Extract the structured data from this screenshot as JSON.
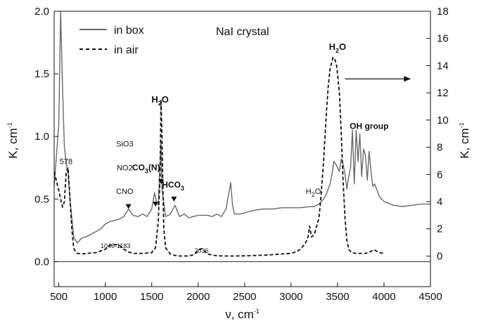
{
  "chart_data": {
    "type": "line",
    "title": "NaI crystal",
    "xlabel": "ν, cm",
    "xlabel_sup": "-1",
    "ylabel": "K, cm",
    "ylabel_sup": "-1",
    "y2label": "K, cm",
    "y2label_sup": "-1",
    "xlim": [
      450,
      4500
    ],
    "ylim": [
      -0.2,
      2.0
    ],
    "y2lim": [
      -2.25,
      18
    ],
    "xticks": [
      500,
      1000,
      1500,
      2000,
      2500,
      3000,
      3500,
      4000,
      4500
    ],
    "yticks": [
      0.0,
      0.5,
      1.0,
      1.5,
      2.0
    ],
    "y2ticks": [
      0,
      2,
      4,
      6,
      8,
      10,
      12,
      14,
      16,
      18
    ],
    "legend": [
      {
        "label": "in box",
        "style": "solid"
      },
      {
        "label": "in air",
        "style": "dashed"
      }
    ],
    "series": [
      {
        "name": "in box",
        "axis": "left",
        "color": "#6a6a6a",
        "x": [
          450,
          500,
          520,
          540,
          560,
          580,
          600,
          620,
          640,
          660,
          680,
          700,
          750,
          800,
          850,
          900,
          950,
          1000,
          1050,
          1100,
          1150,
          1200,
          1250,
          1300,
          1350,
          1400,
          1450,
          1500,
          1530,
          1550,
          1570,
          1600,
          1610,
          1650,
          1700,
          1750,
          1800,
          1850,
          1900,
          1950,
          2000,
          2050,
          2100,
          2150,
          2200,
          2250,
          2300,
          2330,
          2350,
          2370,
          2390,
          2400,
          2450,
          2500,
          2600,
          2700,
          2800,
          2900,
          3000,
          3100,
          3200,
          3250,
          3300,
          3350,
          3380,
          3400,
          3420,
          3440,
          3460,
          3480,
          3500,
          3520,
          3540,
          3560,
          3580,
          3600,
          3620,
          3640,
          3660,
          3680,
          3700,
          3720,
          3740,
          3760,
          3780,
          3800,
          3820,
          3840,
          3860,
          3880,
          3900,
          3920,
          3950,
          4000,
          4100,
          4200,
          4300,
          4400,
          4500
        ],
        "y": [
          0.6,
          1.1,
          2.0,
          1.4,
          0.92,
          0.78,
          0.7,
          0.5,
          0.35,
          0.2,
          0.17,
          0.15,
          0.19,
          0.2,
          0.22,
          0.24,
          0.26,
          0.3,
          0.32,
          0.33,
          0.34,
          0.36,
          0.42,
          0.37,
          0.36,
          0.38,
          0.36,
          0.42,
          0.55,
          0.48,
          0.45,
          0.95,
          0.58,
          0.36,
          0.38,
          0.45,
          0.36,
          0.38,
          0.35,
          0.36,
          0.37,
          0.37,
          0.37,
          0.36,
          0.38,
          0.36,
          0.42,
          0.55,
          0.63,
          0.45,
          0.38,
          0.38,
          0.38,
          0.39,
          0.41,
          0.42,
          0.42,
          0.43,
          0.43,
          0.43,
          0.44,
          0.44,
          0.46,
          0.5,
          0.54,
          0.58,
          0.62,
          0.7,
          0.8,
          0.78,
          0.75,
          0.72,
          0.82,
          0.78,
          0.7,
          0.58,
          0.68,
          0.75,
          1.05,
          0.62,
          1.05,
          0.8,
          1.02,
          0.68,
          0.9,
          0.85,
          0.65,
          0.88,
          0.72,
          0.6,
          0.62,
          0.58,
          0.52,
          0.48,
          0.45,
          0.44,
          0.45,
          0.46,
          0.46
        ]
      },
      {
        "name": "in air",
        "axis": "right",
        "color": "#111111",
        "x": [
          450,
          500,
          520,
          540,
          560,
          580,
          600,
          620,
          640,
          660,
          680,
          700,
          750,
          800,
          900,
          1000,
          1050,
          1100,
          1150,
          1200,
          1250,
          1300,
          1400,
          1500,
          1540,
          1570,
          1590,
          1600,
          1610,
          1620,
          1630,
          1650,
          1700,
          1750,
          1800,
          1850,
          1900,
          1950,
          1980,
          2000,
          2020,
          2036,
          2060,
          2100,
          2200,
          2300,
          2400,
          2500,
          2600,
          2700,
          2800,
          2900,
          3000,
          3050,
          3100,
          3150,
          3180,
          3200,
          3220,
          3250,
          3300,
          3320,
          3350,
          3380,
          3400,
          3420,
          3440,
          3450,
          3470,
          3490,
          3500,
          3520,
          3540,
          3560,
          3580,
          3600,
          3620,
          3650,
          3700,
          3750,
          3800,
          3850,
          3870,
          3900,
          3920,
          3950,
          4000
        ],
        "y": [
          6.2,
          4.8,
          4.2,
          3.6,
          4.0,
          6.2,
          6.5,
          4.2,
          2.0,
          0.6,
          0.3,
          0.2,
          0.15,
          0.2,
          0.25,
          0.5,
          0.8,
          0.85,
          0.8,
          0.5,
          0.3,
          0.2,
          0.2,
          0.25,
          0.6,
          2.5,
          6.0,
          11.5,
          9.0,
          5.0,
          2.0,
          0.6,
          0.15,
          0.05,
          0.0,
          0.0,
          0.0,
          0.1,
          0.25,
          0.4,
          0.5,
          0.55,
          0.4,
          0.15,
          0.02,
          0.0,
          0.0,
          0.02,
          0.04,
          0.06,
          0.1,
          0.15,
          0.2,
          0.3,
          0.5,
          0.9,
          1.3,
          2.2,
          1.4,
          1.6,
          2.8,
          4.2,
          7.0,
          10.5,
          12.5,
          13.8,
          14.3,
          14.6,
          14.5,
          14.0,
          13.4,
          12.0,
          9.0,
          5.5,
          2.8,
          1.2,
          0.5,
          0.25,
          0.2,
          0.2,
          0.2,
          0.3,
          0.4,
          0.45,
          0.35,
          0.25,
          0.2
        ]
      }
    ],
    "annotations": [
      {
        "text": "578",
        "style": "small",
        "x": 578,
        "y": 0.78,
        "axis": "left"
      },
      {
        "text": "SiO3",
        "style": "small",
        "x": 1210,
        "y": 0.92,
        "axis": "left"
      },
      {
        "text": "NO2",
        "style": "small",
        "x": 1210,
        "y": 0.73,
        "axis": "left"
      },
      {
        "text": "CNO",
        "style": "small",
        "x": 1210,
        "y": 0.54,
        "axis": "left"
      },
      {
        "text": "CO",
        "sub": "3",
        "tail": "(N)",
        "style": "bold",
        "x": 1440,
        "y": 0.73,
        "axis": "left"
      },
      {
        "text": "HCO",
        "sub": "3",
        "style": "bold",
        "x": 1730,
        "y": 0.59,
        "axis": "left"
      },
      {
        "text": "H",
        "sub": "2",
        "tail": "O",
        "style": "h2o",
        "x": 1590,
        "y": 1.27,
        "axis": "left"
      },
      {
        "text": "H",
        "sub": "2",
        "tail": "O",
        "style": "small",
        "x": 3240,
        "y": 0.54,
        "axis": "left"
      },
      {
        "text": "H",
        "sub": "2",
        "tail": "O",
        "style": "h2o",
        "x": 3500,
        "y": 1.69,
        "axis": "left"
      },
      {
        "text": "OH group",
        "style": "bold",
        "x": 3840,
        "y": 1.06,
        "axis": "left"
      },
      {
        "text": "1046-1183",
        "style": "tiny",
        "x": 1110,
        "y": 0.11,
        "axis": "left"
      },
      {
        "text": "2036",
        "style": "tiny",
        "x": 2036,
        "y": 0.07,
        "axis": "left"
      }
    ],
    "markers": [
      {
        "x": 1250,
        "y": 0.42
      },
      {
        "x": 1540,
        "y": 0.44
      },
      {
        "x": 1600,
        "y": 0.62
      },
      {
        "x": 1740,
        "y": 0.48
      }
    ],
    "arrow": {
      "x1": 3580,
      "x2": 4290,
      "y": 1.46,
      "axis": "left"
    },
    "zero_line": {
      "y": 0.0,
      "axis": "left"
    },
    "grid": false,
    "legend_position": "top-left"
  }
}
